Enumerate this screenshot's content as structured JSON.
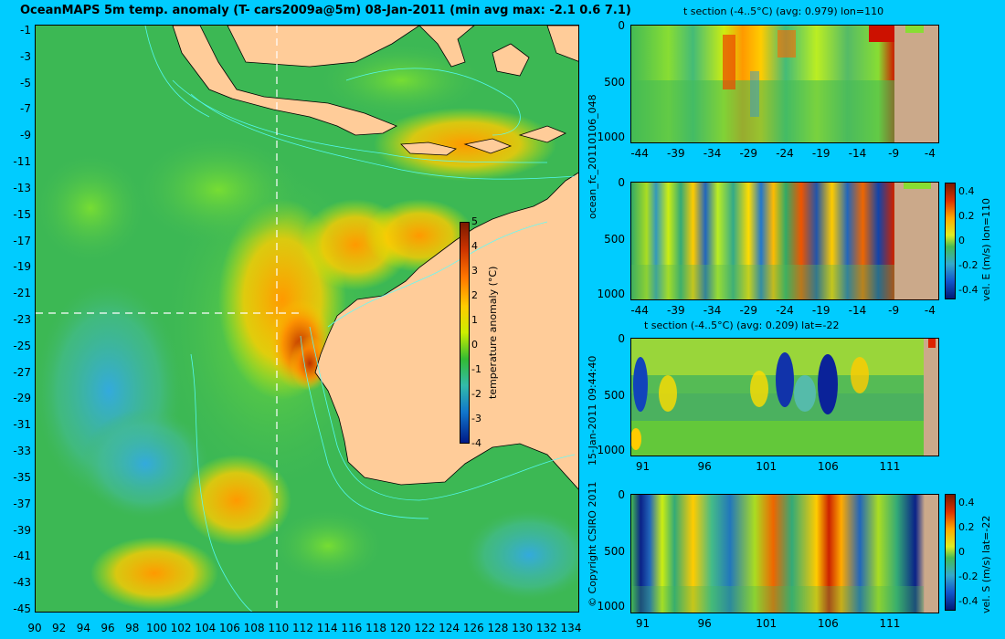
{
  "main_map": {
    "title": "OceanMAPS 5m temp. anomaly (T- cars2009a@5m) 08-Jan-2011 (min avg max: -2.1 0.6 7.1)",
    "lat_ticks": [
      "-1",
      "-3",
      "-5",
      "-7",
      "-9",
      "-11",
      "-13",
      "-15",
      "-17",
      "-19",
      "-21",
      "-23",
      "-25",
      "-27",
      "-29",
      "-31",
      "-33",
      "-35",
      "-37",
      "-39",
      "-41",
      "-43",
      "-45"
    ],
    "lon_ticks": [
      "90",
      "92",
      "94",
      "96",
      "98",
      "100",
      "102",
      "104",
      "106",
      "108",
      "110",
      "112",
      "114",
      "116",
      "118",
      "120",
      "122",
      "124",
      "126",
      "128",
      "130",
      "132",
      "134"
    ],
    "colorbar": {
      "label": "temperature anomaly (°C)",
      "ticks": [
        "5",
        "4",
        "3",
        "2",
        "1",
        "0",
        "-1",
        "-2",
        "-3",
        "-4"
      ]
    }
  },
  "sidebar_labels": {
    "run_id": "ocean_fc_20110106_048",
    "timestamp": "15-Jan-2011 09:44:40",
    "copyright": "© Copyright CSIRO 2011"
  },
  "panels": [
    {
      "title": "t section (-4..5°C) (avg: 0.979) lon=110",
      "x_ticks": [
        "-44",
        "-39",
        "-34",
        "-29",
        "-24",
        "-19",
        "-14",
        "-9",
        "-4"
      ],
      "y_ticks": [
        "0",
        "500",
        "1000"
      ],
      "has_title": true
    },
    {
      "title": "",
      "x_ticks": [
        "-44",
        "-39",
        "-34",
        "-29",
        "-24",
        "-19",
        "-14",
        "-9",
        "-4"
      ],
      "y_ticks": [
        "0",
        "500",
        "1000"
      ],
      "colorbar_label": "vel. E (m/s) lon=110",
      "colorbar_ticks": [
        "0.4",
        "0.2",
        "0",
        "-0.2",
        "-0.4"
      ]
    },
    {
      "title": "t section (-4..5°C) (avg: 0.209) lat=-22",
      "x_ticks": [
        "91",
        "96",
        "101",
        "106",
        "111"
      ],
      "y_ticks": [
        "0",
        "500",
        "1000"
      ]
    },
    {
      "title": "",
      "x_ticks": [
        "91",
        "96",
        "101",
        "106",
        "111"
      ],
      "y_ticks": [
        "0",
        "500",
        "1000"
      ],
      "colorbar_label": "vel. S (m/s) lat=-22",
      "colorbar_ticks": [
        "0.4",
        "0.2",
        "0",
        "-0.2",
        "-0.4"
      ]
    }
  ]
}
